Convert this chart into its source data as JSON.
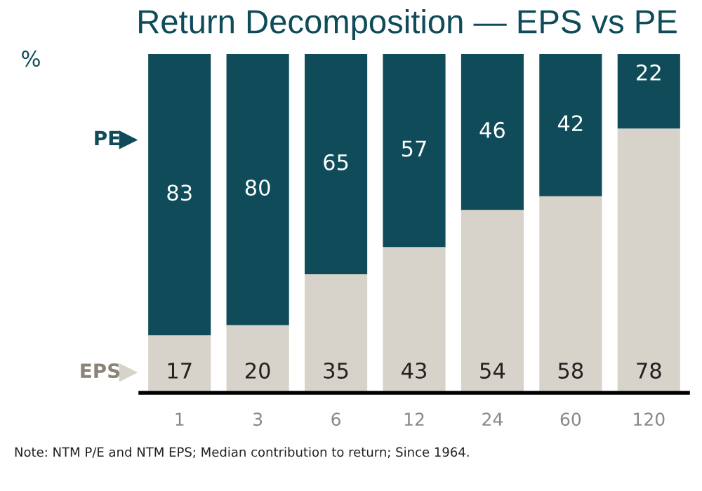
{
  "chart_data": {
    "type": "bar",
    "title": "Return Decomposition — EPS vs PE",
    "ylabel": "%",
    "categories": [
      "1",
      "3",
      "6",
      "12",
      "24",
      "60",
      "120"
    ],
    "stacked": true,
    "data_labels": true,
    "tick_labels": "x",
    "grid": false,
    "legend": "left",
    "ylim": [
      0,
      100
    ],
    "series": [
      {
        "name": "EPS",
        "color": "#d7d3ca",
        "values": [
          17,
          20,
          35,
          43,
          54,
          58,
          78
        ]
      },
      {
        "name": "PE",
        "color": "#0f4b59",
        "values": [
          83,
          80,
          65,
          57,
          46,
          42,
          22
        ]
      }
    ],
    "annotations": [
      "Note: NTM P/E and NTM EPS; Median contribution to return; Since 1964."
    ]
  }
}
